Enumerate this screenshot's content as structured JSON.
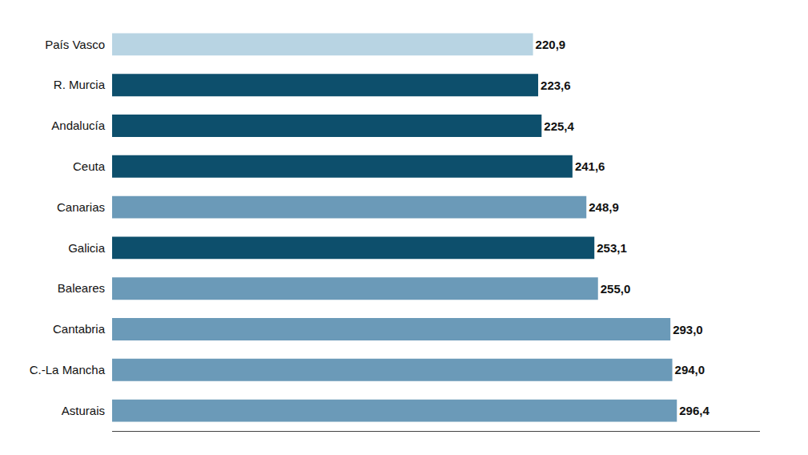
{
  "chart_data": {
    "type": "bar",
    "orientation": "horizontal",
    "categories": [
      "Asturais",
      "C.-La Mancha",
      "Cantabria",
      "Baleares",
      "Galicia",
      "Canarias",
      "Ceuta",
      "Andalucía",
      "R. Murcia",
      "País Vasco"
    ],
    "values": [
      296.4,
      294.0,
      293.0,
      255.0,
      253.1,
      248.9,
      241.6,
      225.4,
      223.6,
      220.9
    ],
    "value_labels": [
      "296,4",
      "294,0",
      "293,0",
      "255,0",
      "253,1",
      "248,9",
      "241,6",
      "225,4",
      "223,6",
      "220,9"
    ],
    "colors": [
      "#6b9ab8",
      "#6b9ab8",
      "#6b9ab8",
      "#6b9ab8",
      "#0d4f6c",
      "#6b9ab8",
      "#0d4f6c",
      "#0d4f6c",
      "#0d4f6c",
      "#b8d4e3"
    ],
    "data_labels": true,
    "xlim": [
      0,
      340
    ],
    "grid": false,
    "tick_labels": "y"
  }
}
